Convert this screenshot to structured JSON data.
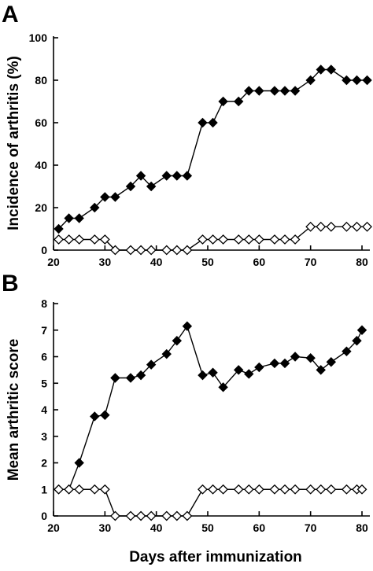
{
  "chart_data": [
    {
      "panel": "A",
      "type": "line",
      "ylabel": "Incidence of arthritis (%)",
      "xlabel": "",
      "xlim": [
        20,
        80
      ],
      "ylim": [
        0,
        100
      ],
      "xticks": [
        20,
        30,
        40,
        50,
        60,
        70,
        80
      ],
      "yticks": [
        0,
        20,
        40,
        60,
        80,
        100
      ],
      "grid": false,
      "series": [
        {
          "marker": "filled-diamond",
          "color": "#000000",
          "x": [
            21,
            23,
            25,
            28,
            30,
            32,
            35,
            37,
            39,
            42,
            44,
            46,
            49,
            51,
            53,
            56,
            58,
            60,
            63,
            65,
            67,
            70,
            72,
            74,
            77,
            79,
            81
          ],
          "y": [
            10,
            15,
            15,
            20,
            25,
            25,
            30,
            35,
            30,
            35,
            35,
            35,
            60,
            60,
            70,
            70,
            75,
            75,
            75,
            75,
            75,
            80,
            85,
            85,
            80,
            80,
            80
          ]
        },
        {
          "marker": "open-diamond",
          "color": "#000000",
          "x": [
            21,
            23,
            25,
            28,
            30,
            32,
            35,
            37,
            39,
            42,
            44,
            46,
            49,
            51,
            53,
            56,
            58,
            60,
            63,
            65,
            67,
            70,
            72,
            74,
            77,
            79,
            81
          ],
          "y": [
            5,
            5,
            5,
            5,
            5,
            0,
            0,
            0,
            0,
            0,
            0,
            0,
            5,
            5,
            5,
            5,
            5,
            5,
            5,
            5,
            5,
            11,
            11,
            11,
            11,
            11,
            11
          ]
        }
      ]
    },
    {
      "panel": "B",
      "type": "line",
      "ylabel": "Mean arthritic score",
      "xlabel": "Days after immunization",
      "xlim": [
        20,
        80
      ],
      "ylim": [
        0,
        8
      ],
      "xticks": [
        20,
        30,
        40,
        50,
        60,
        70,
        80
      ],
      "yticks": [
        0,
        1,
        2,
        3,
        4,
        5,
        6,
        7,
        8
      ],
      "grid": false,
      "series": [
        {
          "marker": "filled-diamond",
          "color": "#000000",
          "x": [
            21,
            23,
            25,
            28,
            30,
            32,
            35,
            37,
            39,
            42,
            44,
            46,
            49,
            51,
            53,
            56,
            58,
            60,
            63,
            65,
            67,
            70,
            72,
            74,
            77,
            79,
            80
          ],
          "y": [
            1,
            1,
            2,
            3.75,
            3.8,
            5.2,
            5.2,
            5.3,
            5.7,
            6.1,
            6.6,
            7.15,
            5.3,
            5.4,
            4.85,
            5.5,
            5.35,
            5.6,
            5.75,
            5.75,
            6.0,
            5.95,
            5.5,
            5.8,
            6.2,
            6.6,
            7.0
          ]
        },
        {
          "marker": "open-diamond",
          "color": "#000000",
          "x": [
            21,
            23,
            25,
            28,
            30,
            32,
            35,
            37,
            39,
            42,
            44,
            46,
            49,
            51,
            53,
            56,
            58,
            60,
            63,
            65,
            67,
            70,
            72,
            74,
            77,
            79,
            80
          ],
          "y": [
            1,
            1,
            1,
            1,
            1,
            0,
            0,
            0,
            0,
            0,
            0,
            0,
            1,
            1,
            1,
            1,
            1,
            1,
            1,
            1,
            1,
            1,
            1,
            1,
            1,
            1,
            1
          ]
        }
      ]
    }
  ]
}
